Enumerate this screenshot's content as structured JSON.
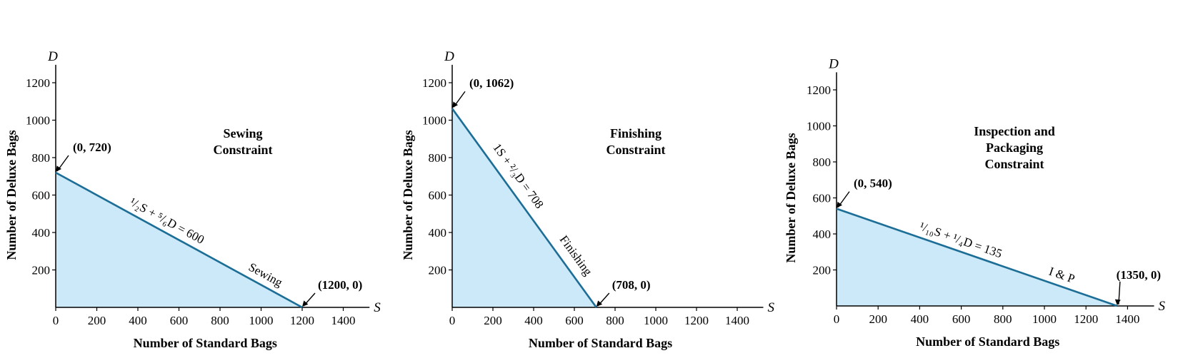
{
  "chart_data": [
    {
      "type": "area",
      "title": "Sewing Constraint",
      "title_lines": [
        "Sewing",
        "Constraint"
      ],
      "xlabel": "Number of Standard Bags",
      "ylabel": "Number of Deluxe Bags",
      "x_axis_letter": "S",
      "y_axis_letter": "D",
      "xlim": [
        0,
        1500
      ],
      "ylim": [
        0,
        1250
      ],
      "x_ticks": [
        0,
        200,
        400,
        600,
        800,
        1000,
        1200,
        1400
      ],
      "y_ticks": [
        200,
        400,
        600,
        800,
        1000,
        1200
      ],
      "line": {
        "x": [
          0,
          1200
        ],
        "y": [
          720,
          0
        ]
      },
      "equation_label": "¹/₂S + ⁵/₆D = 600",
      "line_name": "Sewing",
      "points": [
        {
          "x": 0,
          "y": 720,
          "label": "(0, 720)"
        },
        {
          "x": 1200,
          "y": 0,
          "label": "(1200, 0)"
        }
      ],
      "fill_color": "#cbe9f8",
      "line_color": "#1c6e96"
    },
    {
      "type": "area",
      "title": "Finishing Constraint",
      "title_lines": [
        "Finishing",
        "Constraint"
      ],
      "xlabel": "Number of Standard Bags",
      "ylabel": "Number of Deluxe Bags",
      "x_axis_letter": "S",
      "y_axis_letter": "D",
      "xlim": [
        0,
        1500
      ],
      "ylim": [
        0,
        1250
      ],
      "x_ticks": [
        0,
        200,
        400,
        600,
        800,
        1000,
        1200,
        1400
      ],
      "y_ticks": [
        200,
        400,
        600,
        800,
        1000,
        1200
      ],
      "line": {
        "x": [
          0,
          708
        ],
        "y": [
          1062,
          0
        ]
      },
      "equation_label": "1S + ²/₃D = 708",
      "line_name": "Finishing",
      "points": [
        {
          "x": 0,
          "y": 1062,
          "label": "(0, 1062)"
        },
        {
          "x": 708,
          "y": 0,
          "label": "(708, 0)"
        }
      ],
      "fill_color": "#cbe9f8",
      "line_color": "#1c6e96"
    },
    {
      "type": "area",
      "title": "Inspection and Packaging Constraint",
      "title_lines": [
        "Inspection and",
        "Packaging",
        "Constraint"
      ],
      "xlabel": "Number of Standard Bags",
      "ylabel": "Number of Deluxe Bags",
      "x_axis_letter": "S",
      "y_axis_letter": "D",
      "xlim": [
        0,
        1500
      ],
      "ylim": [
        0,
        1250
      ],
      "x_ticks": [
        0,
        200,
        400,
        600,
        800,
        1000,
        1200,
        1400
      ],
      "y_ticks": [
        200,
        400,
        600,
        800,
        1000,
        1200
      ],
      "line": {
        "x": [
          0,
          1350
        ],
        "y": [
          540,
          0
        ]
      },
      "equation_label": "¹/₁₀S + ¹/₄D = 135",
      "line_name": "I & P",
      "points": [
        {
          "x": 0,
          "y": 540,
          "label": "(0, 540)"
        },
        {
          "x": 1350,
          "y": 0,
          "label": "(1350, 0)"
        }
      ],
      "fill_color": "#cbe9f8",
      "line_color": "#1c6e96"
    }
  ]
}
